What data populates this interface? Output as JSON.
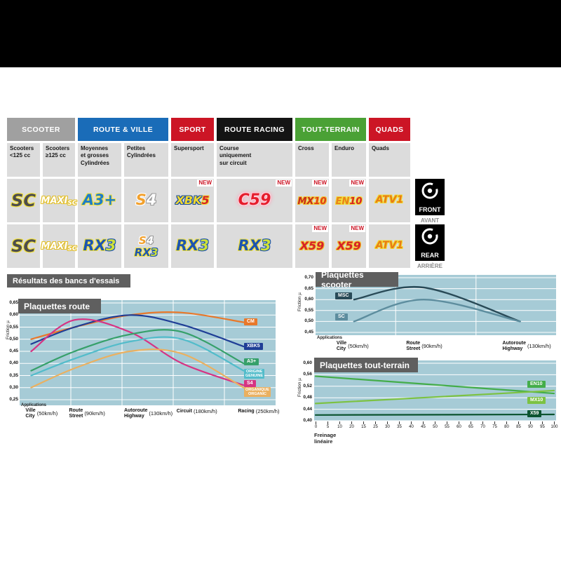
{
  "results_title": "Résultats des bancs d'essais",
  "colors": {
    "plot_bg": "#a6cbd6",
    "title_bar": "#5f5f5f",
    "new_red": "#cc1525",
    "cell_gray": "#dcdcdc"
  },
  "table": {
    "category_headers": [
      {
        "label": "SCOOTER",
        "color": "#a0a0a0"
      },
      {
        "label": "ROUTE & VILLE",
        "color": "#1a6cb8"
      },
      {
        "label": "SPORT",
        "color": "#cc1525"
      },
      {
        "label": "ROUTE RACING",
        "color": "#141414"
      },
      {
        "label": "TOUT-TERRAIN",
        "color": "#4aa135"
      },
      {
        "label": "QUADS",
        "color": "#cc1525"
      }
    ],
    "columns": [
      {
        "subheader": "Scooters\n<125 cc",
        "front": {
          "products": [
            "SC"
          ],
          "new": false
        },
        "rear": {
          "products": [
            "SC"
          ],
          "new": false
        }
      },
      {
        "subheader": "Scooters\n≥125 cc",
        "front": {
          "products": [
            "MAXI SC"
          ],
          "new": false
        },
        "rear": {
          "products": [
            "MAXI SC"
          ],
          "new": false
        }
      },
      {
        "subheader": "Moyennes\net grosses\nCylindrées",
        "front": {
          "products": [
            "A3+"
          ],
          "new": false
        },
        "rear": {
          "products": [
            "RX3"
          ],
          "new": false
        }
      },
      {
        "subheader": "Petites\nCylindrées",
        "front": {
          "products": [
            "S4"
          ],
          "new": false
        },
        "rear": {
          "products": [
            "S4",
            "RX3"
          ],
          "new": false
        }
      },
      {
        "subheader": "Supersport",
        "front": {
          "products": [
            "XBK5"
          ],
          "new": true
        },
        "rear": {
          "products": [
            "RX3"
          ],
          "new": false
        }
      },
      {
        "subheader": "Course\nuniquement\nsur circuit",
        "front": {
          "products": [
            "C59"
          ],
          "new": true
        },
        "rear": {
          "products": [
            "RX3"
          ],
          "new": false
        }
      },
      {
        "subheader": "Cross",
        "front": {
          "products": [
            "MX10"
          ],
          "new": true
        },
        "rear": {
          "products": [
            "X59"
          ],
          "new": true
        }
      },
      {
        "subheader": "Enduro",
        "front": {
          "products": [
            "EN10"
          ],
          "new": true
        },
        "rear": {
          "products": [
            "X59"
          ],
          "new": true
        }
      },
      {
        "subheader": "Quads",
        "front": {
          "products": [
            "ATV1"
          ],
          "new": false
        },
        "rear": {
          "products": [
            "ATV1"
          ],
          "new": false
        }
      }
    ],
    "new_badge": "NEW",
    "front_marker": {
      "label": "FRONT",
      "sub": "AVANT"
    },
    "rear_marker": {
      "label": "REAR",
      "sub": "ARRIÈRE"
    }
  },
  "logo_styles": {
    "SC": {
      "fill": "#4d4d4d",
      "outline": "#f2e13d"
    },
    "MAXI SC": {
      "fill": "#ffffff",
      "outline": "#e2bf2a",
      "maxi": true
    },
    "A3+": {
      "fill": "#1e7dc8",
      "outline": "#f2e13d"
    },
    "S4": {
      "parts": [
        {
          "t": "S",
          "fill": "#f2a02c",
          "outline": "#ffffff"
        },
        {
          "t": "4",
          "fill": "#ffffff",
          "outline": "#9a9a9a"
        }
      ]
    },
    "XBK5": {
      "parts": [
        {
          "t": "XBK",
          "fill": "#f2d92e",
          "outline": "#1d4f9e"
        },
        {
          "t": "5",
          "fill": "#d62029",
          "outline": "#f2d92e"
        }
      ]
    },
    "RX3": {
      "parts": [
        {
          "t": "RX",
          "fill": "#1d55b0",
          "outline": "#f2e13d"
        },
        {
          "t": "3",
          "fill": "#cfe03a",
          "outline": "#1d55b0"
        }
      ]
    },
    "C59": {
      "fill": "#e51d2c",
      "outline": "#ffd2dd",
      "glow": "#ff9fb4"
    },
    "MX10": {
      "parts": [
        {
          "t": "MX",
          "fill": "#c62a1e",
          "outline": "#f2c52e"
        },
        {
          "t": "10",
          "fill": "#e03c1a",
          "outline": "#f2c52e"
        }
      ]
    },
    "EN10": {
      "parts": [
        {
          "t": "EN",
          "fill": "#e8821c",
          "outline": "#f2d92e"
        },
        {
          "t": "10",
          "fill": "#d62029",
          "outline": "#f2d92e"
        }
      ]
    },
    "ATV1": {
      "fill": "#e87b16",
      "outline": "#f2d92e"
    },
    "X59": {
      "fill": "#d62029",
      "outline": "#f2c52e"
    }
  },
  "chart_data": [
    {
      "type": "line",
      "title": "Plaquettes route",
      "ylabel": "Friction µ",
      "x_note": "Applications",
      "categories": [
        {
          "fr": "Ville",
          "en": "City",
          "speed": "(50km/h)"
        },
        {
          "fr": "Route",
          "en": "Street",
          "speed": "(90km/h)"
        },
        {
          "fr": "Autoroute",
          "en": "Highway",
          "speed": "(130km/h)"
        },
        {
          "fr": "Circuit",
          "en": "",
          "speed": "(180km/h)"
        },
        {
          "fr": "Racing",
          "en": "",
          "speed": "(250km/h)"
        }
      ],
      "ylim": [
        0.25,
        0.65
      ],
      "yticks": [
        "0,65",
        "0,60",
        "0,55",
        "0,50",
        "0,45",
        "0,40",
        "0,35",
        "0,30",
        "0,25"
      ],
      "grid": true,
      "legend_position": "right",
      "series": [
        {
          "name": "CM",
          "color": "#e8782a",
          "values": [
            0.5,
            0.55,
            0.6,
            0.61,
            0.57
          ],
          "label_y": 0.57
        },
        {
          "name": "XBK5",
          "color": "#1f3e96",
          "values": [
            0.48,
            0.55,
            0.6,
            0.56,
            0.47
          ],
          "label_y": 0.47
        },
        {
          "name": "S4",
          "color": "#d63383",
          "values": [
            0.45,
            0.58,
            0.53,
            0.4,
            0.31
          ],
          "label_y": 0.315
        },
        {
          "name": "A3+",
          "color": "#36a06a",
          "values": [
            0.37,
            0.45,
            0.52,
            0.53,
            0.4
          ],
          "label_y": 0.405
        },
        {
          "name": "ORIGINE\nGENUINE",
          "color": "#52bcca",
          "values": [
            0.35,
            0.42,
            0.49,
            0.5,
            0.37
          ],
          "label_y": 0.358
        },
        {
          "name": "ORGANIQUE\nORGANIC",
          "color": "#eab060",
          "values": [
            0.3,
            0.38,
            0.45,
            0.44,
            0.3
          ],
          "label_y": 0.283
        }
      ]
    },
    {
      "type": "line",
      "title": "Plaquettes scooter",
      "ylabel": "Friction µ",
      "x_note": "Applications",
      "categories": [
        {
          "fr": "Ville",
          "en": "City",
          "speed": "(50km/h)"
        },
        {
          "fr": "Route",
          "en": "Street",
          "speed": "(90km/h)"
        },
        {
          "fr": "Autoroute",
          "en": "Highway",
          "speed": "(130km/h)"
        }
      ],
      "ylim": [
        0.45,
        0.7
      ],
      "yticks": [
        "0,70",
        "0,65",
        "0,60",
        "0,55",
        "0,50",
        "0,45"
      ],
      "grid": true,
      "legend_position": "left",
      "series": [
        {
          "name": "MSC",
          "color": "#294a57",
          "values": [
            0.6,
            0.655,
            0.5
          ],
          "label_y": 0.615
        },
        {
          "name": "SC",
          "color": "#5d8d9e",
          "values": [
            0.5,
            0.6,
            0.5
          ],
          "label_y": 0.52
        }
      ]
    },
    {
      "type": "line",
      "title": "Plaquettes tout-terrain",
      "ylabel": "Friction µ",
      "xlabel": "Freinage linéaire",
      "x_range": [
        0,
        100
      ],
      "xticks": [
        "0",
        "5",
        "10",
        "20",
        "15",
        "25",
        "30",
        "35",
        "40",
        "45",
        "50",
        "55",
        "60",
        "65",
        "70",
        "75",
        "80",
        "85",
        "90",
        "95",
        "100"
      ],
      "ylim": [
        0.4,
        0.6
      ],
      "yticks": [
        "0,60",
        "0,56",
        "0,52",
        "0,48",
        "0,44",
        "0,40"
      ],
      "grid": true,
      "legend_position": "right",
      "series": [
        {
          "name": "EN10",
          "color": "#44ad4a",
          "values": [
            0.555,
            0.495
          ],
          "label_y": 0.525
        },
        {
          "name": "MX10",
          "color": "#7cc242",
          "values": [
            0.46,
            0.505
          ],
          "label_y": 0.47
        },
        {
          "name": "X59",
          "color": "#0c5430",
          "values": [
            0.42,
            0.422
          ],
          "label_y": 0.423
        }
      ]
    }
  ]
}
